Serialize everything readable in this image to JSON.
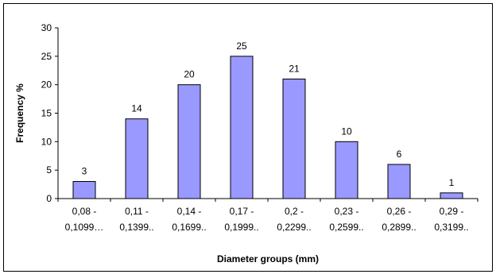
{
  "chart_data": {
    "type": "bar",
    "categories": [
      [
        "0,08 -",
        "0,1099…"
      ],
      [
        "0,11 -",
        "0,1399.."
      ],
      [
        "0,14 -",
        "0,1699.."
      ],
      [
        "0,17 -",
        "0,1999.."
      ],
      [
        "0,2 -",
        "0,2299.."
      ],
      [
        "0,23 -",
        "0,2599.."
      ],
      [
        "0,26 -",
        "0,2899.."
      ],
      [
        "0,29 -",
        "0,3199.."
      ]
    ],
    "values": [
      3,
      14,
      20,
      25,
      21,
      10,
      6,
      1
    ],
    "data_labels": [
      "3",
      "14",
      "20",
      "25",
      "21",
      "10",
      "6",
      "1"
    ],
    "xlabel": "Diameter groups (mm)",
    "ylabel": "Frequency %",
    "ylim": [
      0,
      30
    ],
    "yticks": [
      "0",
      "5",
      "10",
      "15",
      "20",
      "25",
      "30"
    ],
    "grid": false,
    "legend": "none",
    "colors": {
      "bar_fill": "#9999ff",
      "bar_stroke": "#000000",
      "axis": "#000000"
    }
  }
}
